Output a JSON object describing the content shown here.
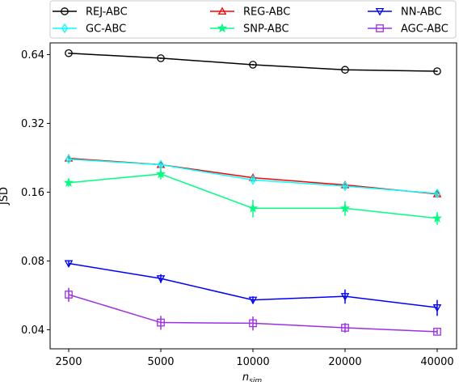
{
  "chart_data": {
    "type": "line",
    "title": "",
    "xlabel": "n",
    "xlabel_sub": "sim",
    "ylabel": "JSD",
    "x": [
      2500,
      5000,
      10000,
      20000,
      40000
    ],
    "x_tick_labels": [
      "2500",
      "5000",
      "10000",
      "20000",
      "40000"
    ],
    "x_scale": "log2",
    "y_scale": "log2",
    "ylim": [
      0.033,
      0.72
    ],
    "y_ticks": [
      0.04,
      0.08,
      0.16,
      0.32,
      0.64
    ],
    "y_tick_labels": [
      "0.04",
      "0.08",
      "0.16",
      "0.32",
      "0.64"
    ],
    "grid": false,
    "legend_placement": "top, above plot, 3 columns",
    "series": [
      {
        "name": "REJ-ABC",
        "color": "#000000",
        "marker": "circle",
        "values": [
          0.649,
          0.617,
          0.578,
          0.549,
          0.541
        ],
        "errors": [
          0.004,
          0.004,
          0.004,
          0.003,
          0.003
        ]
      },
      {
        "name": "REG-ABC",
        "color": "#ff0000",
        "marker": "triangle-up",
        "values": [
          0.225,
          0.211,
          0.185,
          0.172,
          0.157
        ],
        "errors": [
          0.004,
          0.004,
          0.004,
          0.003,
          0.003
        ]
      },
      {
        "name": "NN-ABC",
        "color": "#0000ff",
        "marker": "triangle-down",
        "values": [
          0.078,
          0.067,
          0.054,
          0.056,
          0.05
        ],
        "errors": [
          0.002,
          0.003,
          0.002,
          0.004,
          0.004
        ]
      },
      {
        "name": "GC-ABC",
        "color": "#00ffff",
        "marker": "diamond",
        "values": [
          0.223,
          0.211,
          0.181,
          0.17,
          0.158
        ],
        "errors": [
          0.004,
          0.004,
          0.004,
          0.003,
          0.003
        ]
      },
      {
        "name": "SNP-ABC",
        "color": "#00ff80",
        "marker": "star",
        "values": [
          0.176,
          0.192,
          0.136,
          0.136,
          0.123
        ],
        "errors": [
          0.007,
          0.01,
          0.012,
          0.01,
          0.008
        ]
      },
      {
        "name": "AGC-ABC",
        "color": "#9b30e0",
        "marker": "square",
        "values": [
          0.057,
          0.043,
          0.0427,
          0.0408,
          0.0392
        ],
        "errors": [
          0.004,
          0.003,
          0.003,
          0.002,
          0.001
        ]
      }
    ]
  }
}
